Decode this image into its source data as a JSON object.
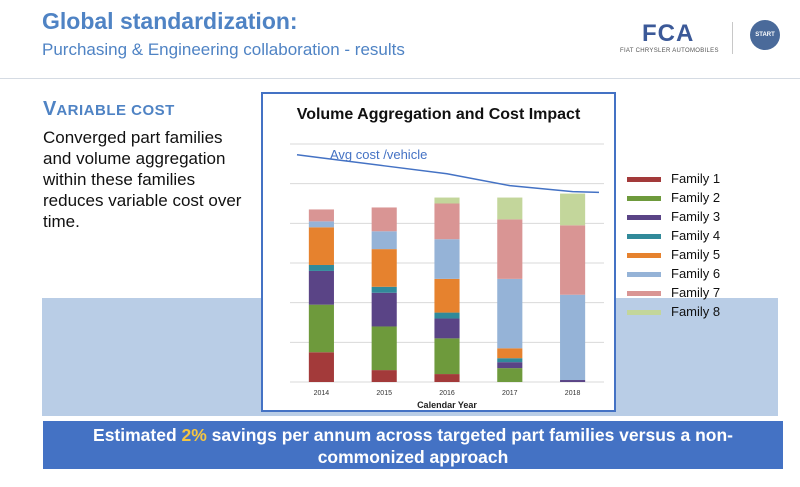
{
  "header": {
    "title": "Global standardization:",
    "subtitle": "Purchasing & Engineering collaboration -  results"
  },
  "logo": {
    "brand": "FCA",
    "tagline": "FIAT CHRYSLER AUTOMOBILES",
    "badge": "START"
  },
  "section": {
    "heading_initial": "V",
    "heading_rest": "ARIABLE COST",
    "body": "Converged part families and volume aggregation within these families reduces variable cost over time."
  },
  "banner": {
    "prefix": "Estimated ",
    "highlight": "2%",
    "suffix": " savings per annum across targeted part families versus a non-commonized approach"
  },
  "colors": {
    "accent": "#4f83c4",
    "banner_bg": "#4472c4",
    "highlight": "#f4c542",
    "band": "#b9cde6"
  },
  "chart_data": {
    "type": "bar",
    "stacked": true,
    "title": "Volume Aggregation and Cost Impact",
    "xlabel": "Calendar Year",
    "ylabel": "",
    "categories": [
      "2014",
      "2015",
      "2016",
      "2017",
      "2018"
    ],
    "ylim": [
      0,
      6
    ],
    "grid": true,
    "legend_position": "right",
    "series": [
      {
        "name": "Family 1",
        "color": "#a33a3a",
        "values": [
          0.75,
          0.3,
          0.2,
          0,
          0
        ]
      },
      {
        "name": "Family 2",
        "color": "#6e9a3c",
        "values": [
          1.2,
          1.1,
          0.9,
          0.35,
          0
        ]
      },
      {
        "name": "Family 3",
        "color": "#5a4486",
        "values": [
          0.85,
          0.85,
          0.5,
          0.15,
          0.05
        ]
      },
      {
        "name": "Family 4",
        "color": "#318a9a",
        "values": [
          0.15,
          0.15,
          0.15,
          0.1,
          0
        ]
      },
      {
        "name": "Family 5",
        "color": "#e6822e",
        "values": [
          0.95,
          0.95,
          0.85,
          0.25,
          0
        ]
      },
      {
        "name": "Family 6",
        "color": "#95b3d7",
        "values": [
          0.15,
          0.45,
          1.0,
          1.75,
          2.15
        ]
      },
      {
        "name": "Family 7",
        "color": "#d99594",
        "values": [
          0.3,
          0.6,
          0.9,
          1.5,
          1.75
        ]
      },
      {
        "name": "Family 8",
        "color": "#c3d69b",
        "values": [
          0,
          0,
          0.15,
          0.55,
          0.8
        ]
      }
    ],
    "cost_line": {
      "label": "Avg cost /vehicle",
      "color": "#4472c4",
      "values": [
        5.65,
        5.45,
        5.25,
        4.95,
        4.8
      ]
    }
  }
}
